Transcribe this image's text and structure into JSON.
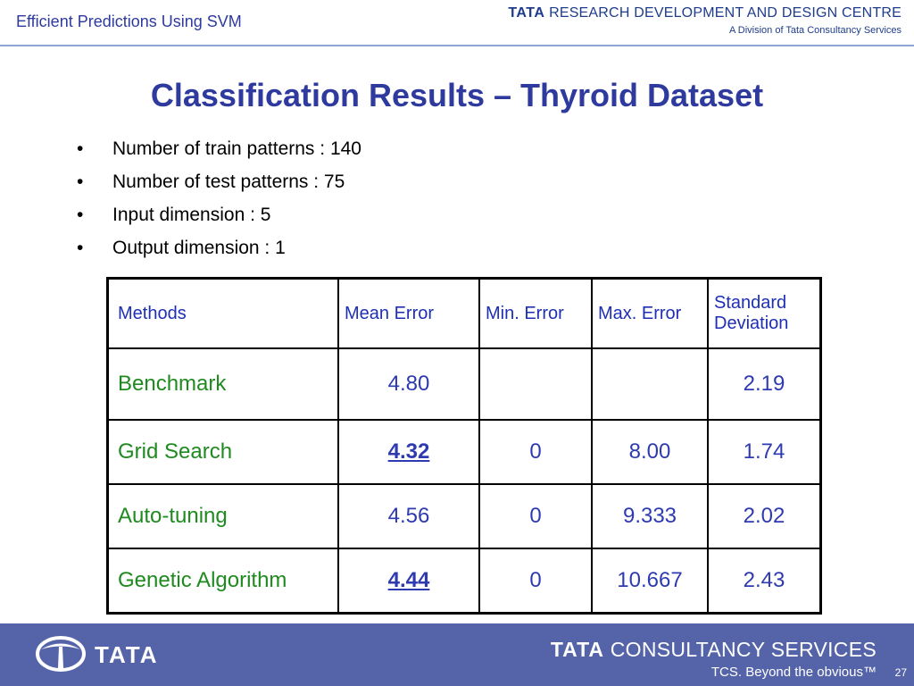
{
  "header": {
    "left_title": "Efficient Predictions Using SVM",
    "brand_tata": "TATA",
    "brand_rest": "RESEARCH DEVELOPMENT AND DESIGN CENTRE",
    "brand_sub": "A Division of Tata Consultancy Services"
  },
  "slide": {
    "title": "Classification Results – Thyroid Dataset",
    "bullets": [
      "Number of train patterns : 140",
      "Number of test patterns : 75",
      "Input dimension : 5",
      "Output dimension : 1"
    ]
  },
  "table": {
    "headers": [
      "Methods",
      "Mean Error",
      "Min. Error",
      "Max. Error",
      "Standard Deviation"
    ],
    "rows": [
      {
        "method": "Benchmark",
        "mean": "4.80",
        "min": "",
        "max": "",
        "std": "2.19"
      },
      {
        "method": "Grid Search",
        "mean": "4.32",
        "min": "0",
        "max": "8.00",
        "std": "1.74"
      },
      {
        "method": "Auto-tuning",
        "mean": "4.56",
        "min": "0",
        "max": "9.333",
        "std": "2.02"
      },
      {
        "method": "Genetic Algorithm",
        "mean": "4.44",
        "min": "0",
        "max": "10.667",
        "std": "2.43"
      }
    ]
  },
  "footer": {
    "tata_word": "TATA",
    "tcs_tata": "TATA",
    "tcs_rest": "CONSULTANCY SERVICES",
    "tagline": "TCS. Beyond the obvious™",
    "page_number": "27"
  },
  "colors": {
    "title_blue": "#2e3a9e",
    "method_green": "#1f8a1f",
    "value_blue": "#2e3ab0",
    "footer_bg": "#5564a8"
  },
  "icons": {
    "footer_logo": "tata-emblem-icon"
  }
}
